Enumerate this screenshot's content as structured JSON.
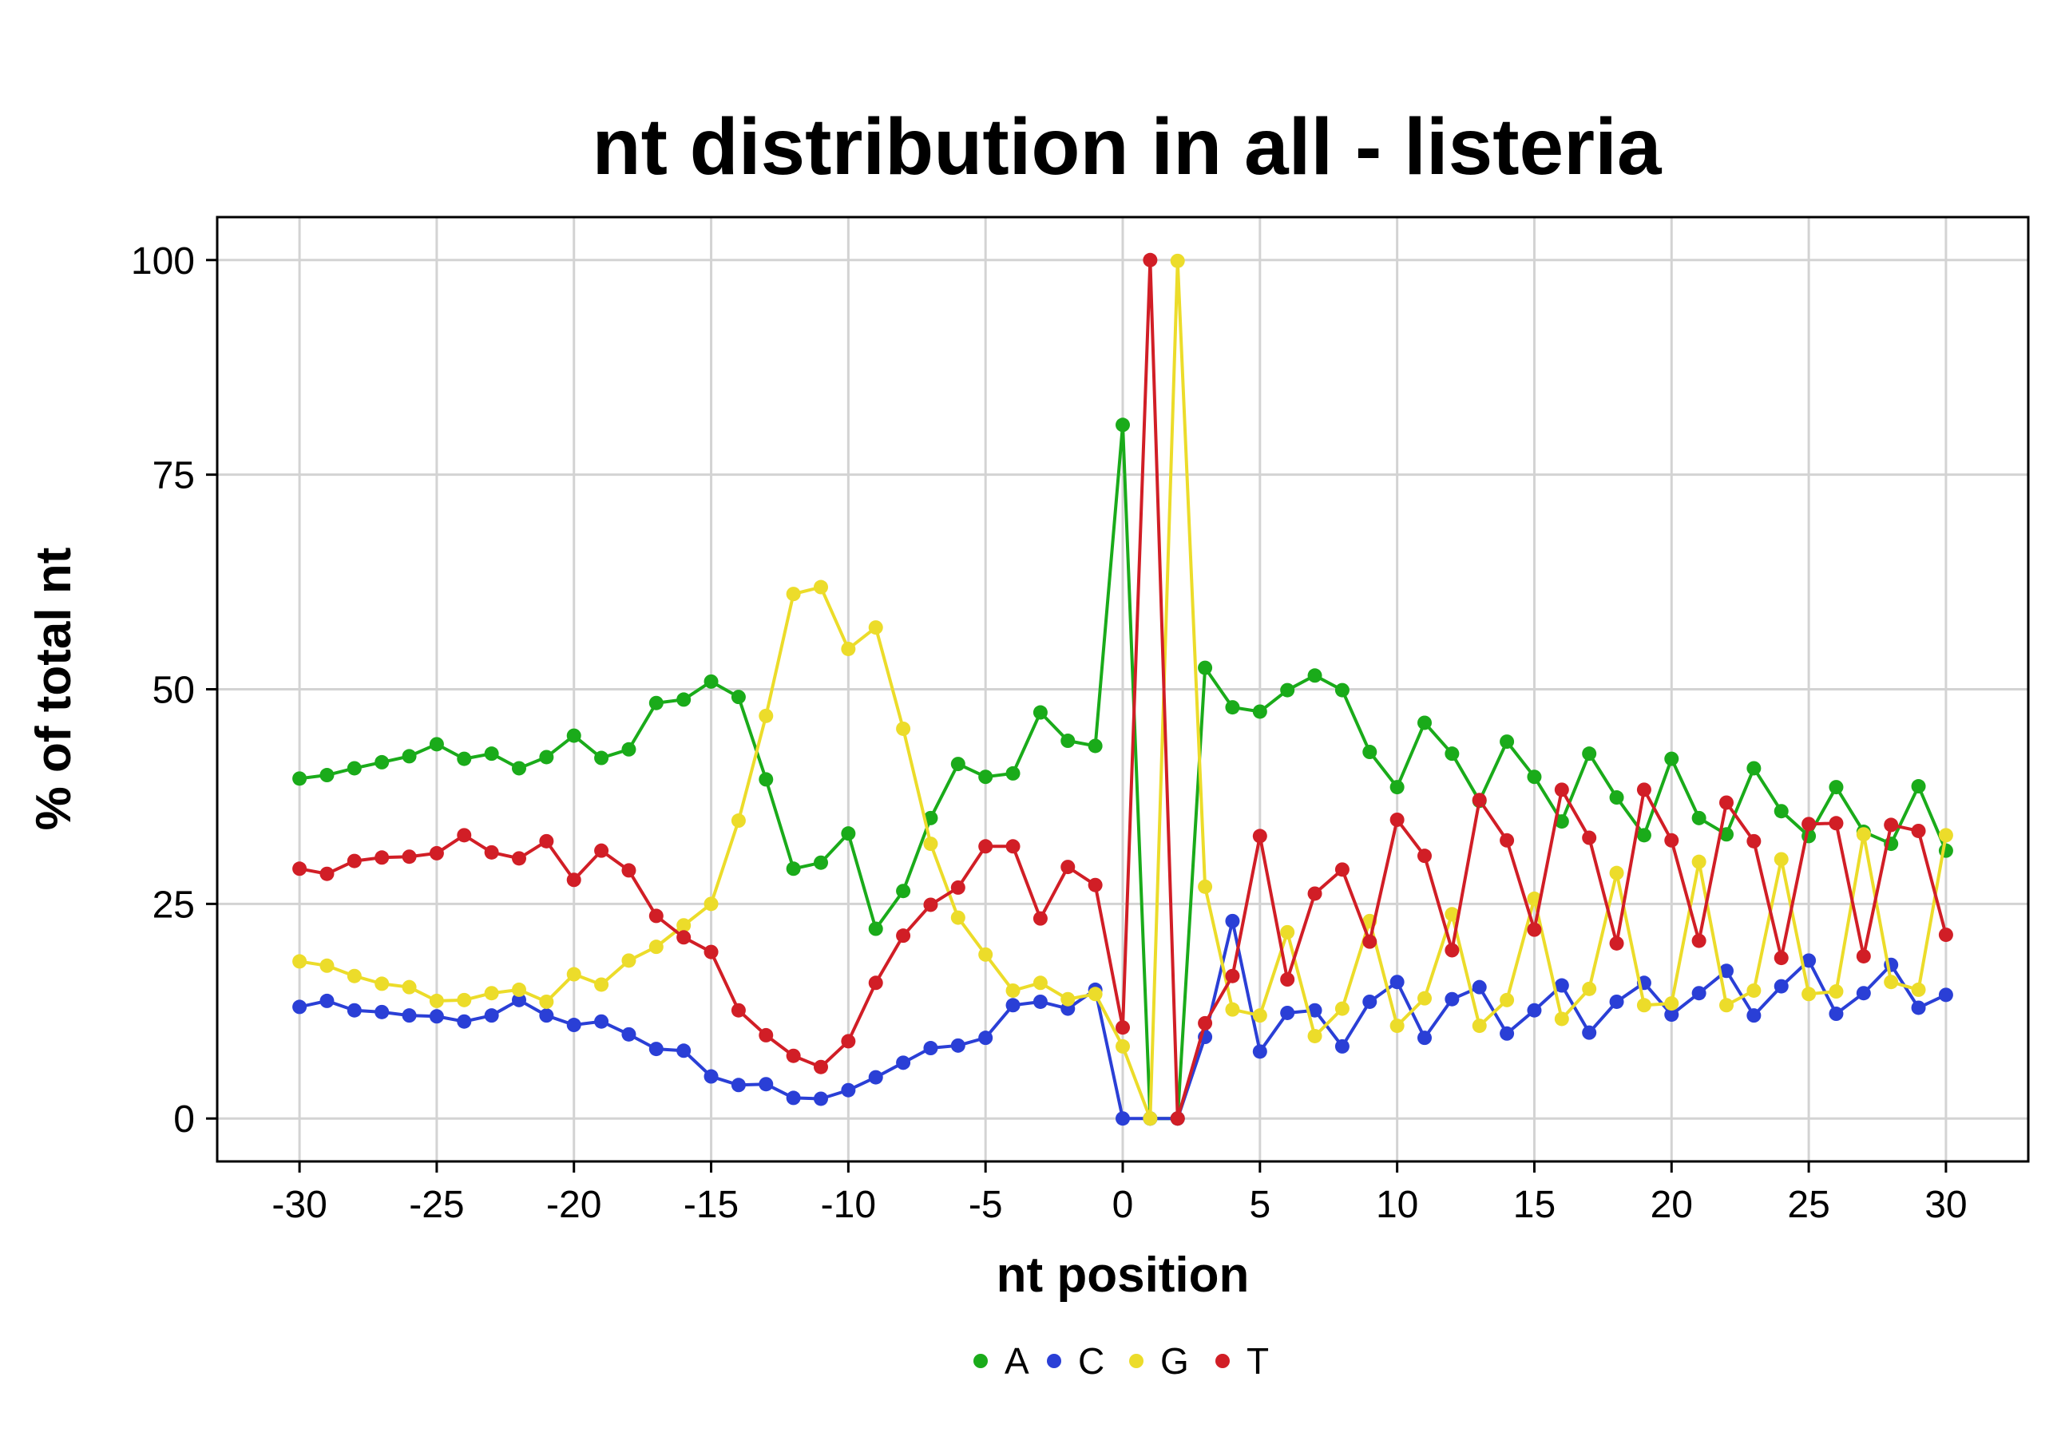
{
  "chart_data": {
    "type": "line",
    "title": "nt distribution in all - listeria",
    "xlabel": "nt position",
    "ylabel": "% of total nt",
    "xlim": [
      -33,
      33
    ],
    "ylim": [
      -5,
      105
    ],
    "xticks": [
      -30,
      -25,
      -20,
      -15,
      -10,
      -5,
      0,
      5,
      10,
      15,
      20,
      25,
      30
    ],
    "xtick_labels": [
      "-30",
      "-25",
      "-20",
      "-15",
      "-10",
      "-5",
      "0",
      "5",
      "10",
      "15",
      "20",
      "25",
      "30"
    ],
    "yticks": [
      0,
      25,
      50,
      75,
      100
    ],
    "ytick_labels": [
      "0",
      "25",
      "50",
      "75",
      "100"
    ],
    "grid": true,
    "legend_position": "bottom",
    "x": [
      -30,
      -29,
      -28,
      -27,
      -26,
      -25,
      -24,
      -23,
      -22,
      -21,
      -20,
      -19,
      -18,
      -17,
      -16,
      -15,
      -14,
      -13,
      -12,
      -11,
      -10,
      -9,
      -8,
      -7,
      -6,
      -5,
      -4,
      -3,
      -2,
      -1,
      0,
      1,
      2,
      3,
      4,
      5,
      6,
      7,
      8,
      9,
      10,
      11,
      12,
      13,
      14,
      15,
      16,
      17,
      18,
      19,
      20,
      21,
      22,
      23,
      24,
      25,
      26,
      27,
      28,
      29,
      30
    ],
    "series": [
      {
        "name": "A",
        "color": "#1aab1a",
        "values": [
          39.6,
          40.0,
          40.8,
          41.5,
          42.2,
          43.6,
          41.9,
          42.5,
          40.8,
          42.1,
          44.6,
          42.0,
          43.0,
          48.4,
          48.8,
          50.9,
          49.1,
          39.5,
          29.1,
          29.8,
          33.2,
          22.1,
          26.5,
          35.0,
          41.3,
          39.8,
          40.2,
          47.3,
          44.0,
          43.4,
          80.8,
          0.0,
          0.0,
          52.5,
          47.9,
          47.4,
          49.9,
          51.6,
          49.9,
          42.7,
          38.6,
          46.1,
          42.5,
          37.0,
          43.9,
          39.8,
          34.6,
          42.5,
          37.4,
          33.0,
          41.9,
          35.0,
          33.1,
          40.8,
          35.8,
          32.9,
          38.6,
          33.4,
          32.0,
          38.7,
          31.2
        ]
      },
      {
        "name": "C",
        "color": "#2a3fd6",
        "values": [
          13.0,
          13.7,
          12.6,
          12.4,
          12.0,
          11.9,
          11.3,
          12.0,
          13.8,
          12.0,
          10.9,
          11.3,
          9.8,
          8.1,
          7.9,
          4.9,
          3.9,
          4.0,
          2.4,
          2.3,
          3.3,
          4.8,
          6.5,
          8.2,
          8.5,
          9.4,
          13.2,
          13.6,
          12.8,
          15.0,
          0.0,
          0.0,
          0.0,
          9.5,
          23.0,
          7.8,
          12.3,
          12.6,
          8.4,
          13.6,
          15.9,
          9.4,
          13.9,
          15.3,
          9.9,
          12.6,
          15.5,
          10.0,
          13.6,
          15.8,
          12.1,
          14.6,
          17.2,
          12.0,
          15.4,
          18.4,
          12.2,
          14.6,
          17.9,
          12.9,
          14.4
        ]
      },
      {
        "name": "G",
        "color": "#ecdc2a",
        "values": [
          18.3,
          17.8,
          16.6,
          15.7,
          15.3,
          13.7,
          13.8,
          14.6,
          15.0,
          13.6,
          16.8,
          15.6,
          18.4,
          20.0,
          22.5,
          25.0,
          34.7,
          46.9,
          61.1,
          61.9,
          54.7,
          57.2,
          45.4,
          32.0,
          23.4,
          19.1,
          14.9,
          15.8,
          13.9,
          14.5,
          8.4,
          0.0,
          99.9,
          27.0,
          12.7,
          12.0,
          21.7,
          9.6,
          12.8,
          23.0,
          10.8,
          14.0,
          23.8,
          10.8,
          13.8,
          25.6,
          11.6,
          15.1,
          28.6,
          13.2,
          13.4,
          29.9,
          13.2,
          14.9,
          30.2,
          14.5,
          14.8,
          33.1,
          15.9,
          15.0,
          33.0
        ]
      },
      {
        "name": "T",
        "color": "#d11e26",
        "values": [
          29.1,
          28.5,
          30.0,
          30.4,
          30.5,
          30.9,
          33.0,
          31.0,
          30.3,
          32.3,
          27.8,
          31.2,
          28.9,
          23.6,
          21.1,
          19.4,
          12.6,
          9.7,
          7.3,
          6.0,
          9.0,
          15.8,
          21.3,
          24.9,
          26.9,
          31.7,
          31.7,
          23.3,
          29.3,
          27.2,
          10.6,
          100.0,
          0.0,
          11.1,
          16.6,
          32.9,
          16.2,
          26.2,
          29.0,
          20.6,
          34.8,
          30.6,
          19.6,
          37.1,
          32.4,
          22.0,
          38.3,
          32.7,
          20.4,
          38.3,
          32.4,
          20.7,
          36.8,
          32.3,
          18.7,
          34.3,
          34.4,
          18.9,
          34.2,
          33.5,
          21.4
        ]
      }
    ]
  }
}
